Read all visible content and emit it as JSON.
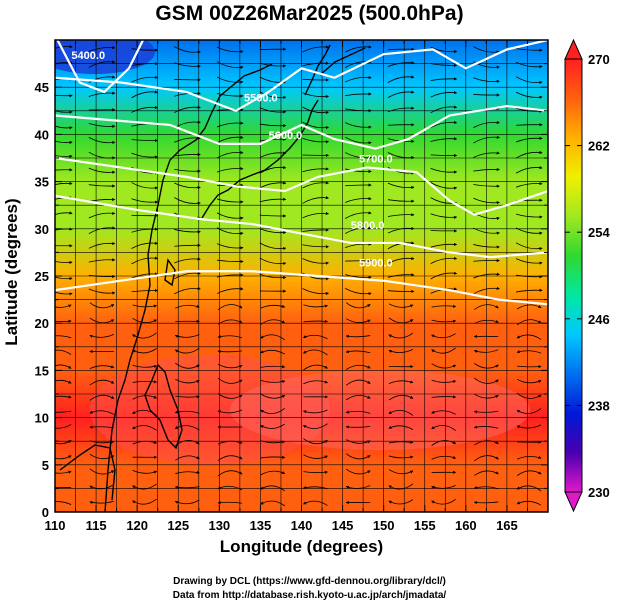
{
  "chart_data": {
    "type": "heatmap",
    "title": "GSM 00Z26Mar2025 (500.0hPa)",
    "xlabel": "Longitude (degrees)",
    "ylabel": "Latitude  (degrees)",
    "xlim": [
      110,
      170
    ],
    "ylim": [
      0,
      50
    ],
    "x_ticks": [
      "110",
      "115",
      "120",
      "125",
      "130",
      "135",
      "140",
      "145",
      "150",
      "155",
      "160",
      "165"
    ],
    "y_ticks": [
      "0",
      "5",
      "10",
      "15",
      "20",
      "25",
      "30",
      "35",
      "40",
      "45"
    ],
    "colorbar": {
      "range": [
        230,
        270
      ],
      "ticks": [
        "230",
        "238",
        "246",
        "254",
        "262",
        "270"
      ],
      "colors": [
        "#e018c8",
        "#4800b0",
        "#0018d8",
        "#0070f0",
        "#00c8ff",
        "#00e8a0",
        "#30d830",
        "#a0e820",
        "#f0f000",
        "#ffb000",
        "#ff6010",
        "#ff2020"
      ]
    },
    "temperature_field": {
      "note": "shaded temperature (K) by latitude band",
      "latitude": [
        0,
        5,
        10,
        15,
        20,
        25,
        30,
        35,
        40,
        45,
        50
      ],
      "values": [
        268,
        268,
        269,
        268,
        267,
        264,
        257,
        254,
        250,
        246,
        240
      ]
    },
    "contours": {
      "variable": "geopotential height",
      "labels": [
        "5400.0",
        "5500.0",
        "5600.0",
        "5700.0",
        "5800.0",
        "5900.0"
      ]
    },
    "streamlines": "wind streamlines, predominantly westerly"
  },
  "credits": {
    "line1": "Drawing by DCL (https://www.gfd-dennou.org/library/dcl/)",
    "line2": "Data from http://database.rish.kyoto-u.ac.jp/arch/jmadata/"
  }
}
